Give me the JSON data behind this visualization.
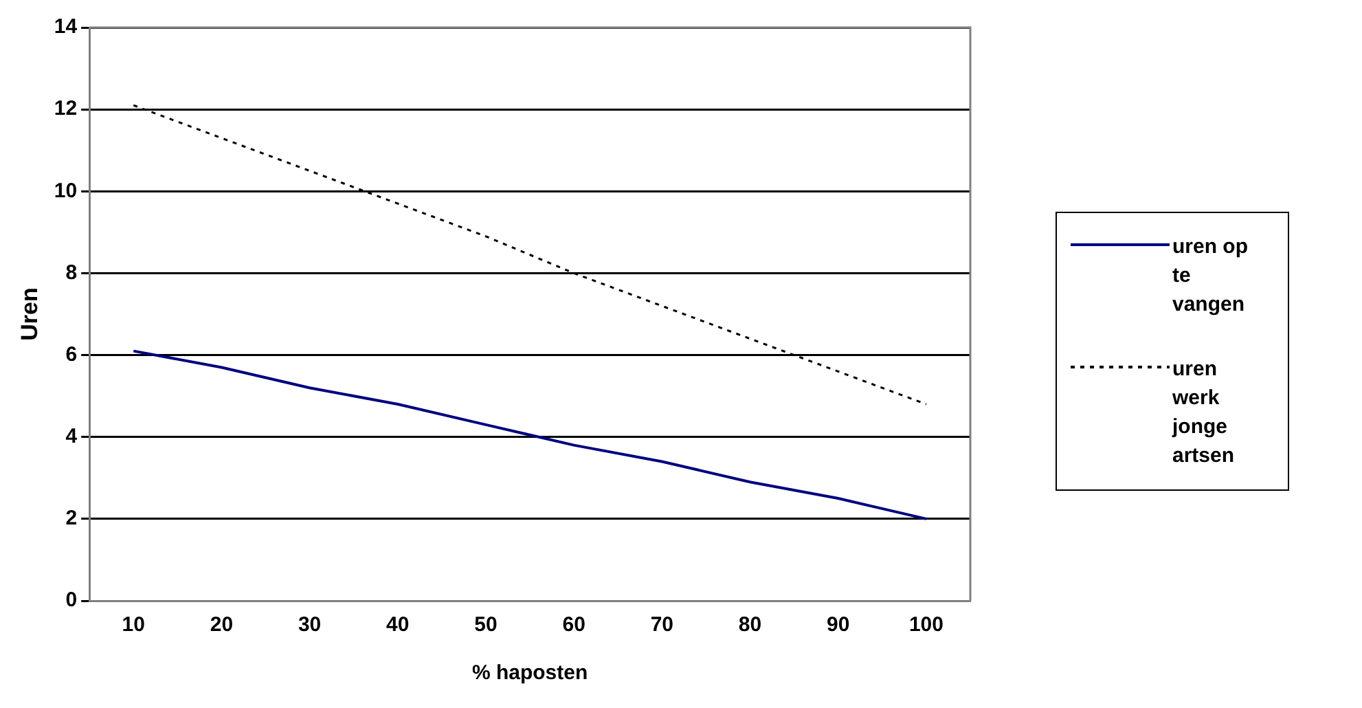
{
  "chart_data": {
    "type": "line",
    "xlabel": "% haposten",
    "ylabel": "Uren",
    "categories": [
      "10",
      "20",
      "30",
      "40",
      "50",
      "60",
      "70",
      "80",
      "90",
      "100"
    ],
    "series": [
      {
        "name": "uren op te vangen",
        "color": "#000080",
        "line_style": "solid",
        "values": [
          6.1,
          5.7,
          5.2,
          4.8,
          4.3,
          3.8,
          3.4,
          2.9,
          2.5,
          2.0
        ]
      },
      {
        "name": "uren werk jonge artsen",
        "color": "#000000",
        "line_style": "dotted",
        "values": [
          12.1,
          11.3,
          10.5,
          9.7,
          8.9,
          8.0,
          7.2,
          6.4,
          5.6,
          4.8
        ]
      }
    ],
    "ylim": [
      0,
      14
    ],
    "yticks": [
      0,
      2,
      4,
      6,
      8,
      10,
      12,
      14
    ],
    "grid": "y",
    "legend": "right",
    "marker": "none"
  }
}
